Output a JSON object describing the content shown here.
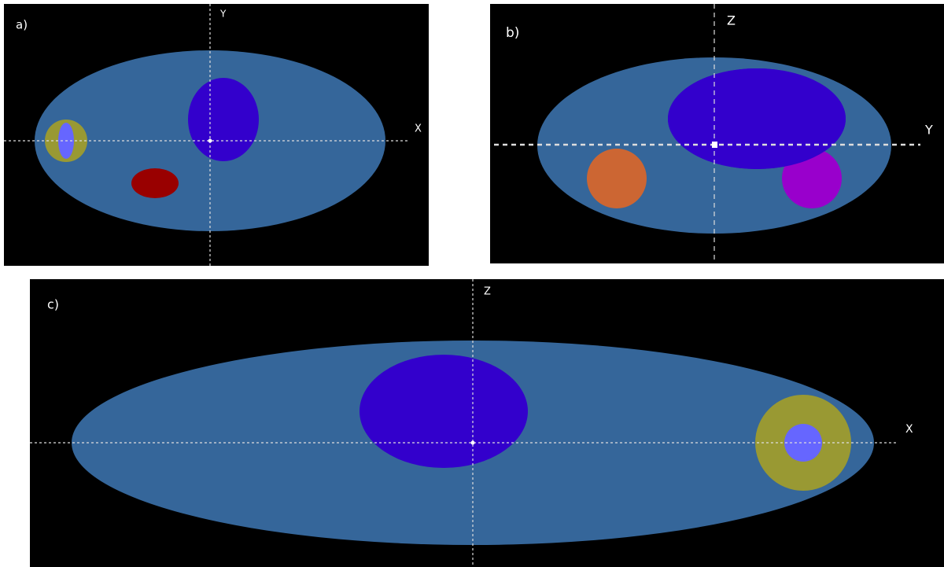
{
  "panels": [
    {
      "label": "a)",
      "vertical_axis": "Y",
      "horizontal_axis": "X"
    },
    {
      "label": "b)",
      "vertical_axis": "Z",
      "horizontal_axis": "Y"
    },
    {
      "label": "c)",
      "vertical_axis": "Z",
      "horizontal_axis": "X"
    }
  ]
}
